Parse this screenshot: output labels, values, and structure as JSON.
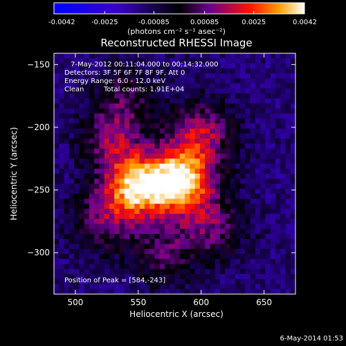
{
  "chart_data": {
    "type": "heatmap",
    "title": "Reconstructed RHESSI Image",
    "xlabel": "Heliocentric X (arcsec)",
    "ylabel": "Heliocentric Y (arcsec)",
    "xlim": [
      483,
      675
    ],
    "ylim": [
      -333,
      -141
    ],
    "x_ticks": [
      500,
      550,
      600,
      650
    ],
    "y_ticks": [
      -150,
      -200,
      -250,
      -300
    ],
    "colorbar": {
      "min": -0.0042,
      "max": 0.0042,
      "ticks": [
        "-0.0042",
        "-0.0025",
        "-0.00085",
        "0.00085",
        "0.0025",
        "0.0042"
      ],
      "unit_label": "(photons cm⁻² s⁻¹ asec⁻²)",
      "colormap_stops": [
        "#0000ff",
        "#3a00c8",
        "#000000",
        "#6a0090",
        "#ff1000",
        "#ffa000",
        "#ffffff"
      ]
    },
    "annotations": {
      "time_range": "7-May-2012 00:11:04.000 to 00:14:32.000",
      "detectors": "Detectors: 3F 5F 6F 7F 8F 9F, Att 0",
      "energy": "Energy Range: 6.0 - 12.0 keV",
      "method": "Clean",
      "counts": "Total counts: 1.91E+04",
      "peak": "Position of Peak = [584,-243]"
    },
    "peak_position": [
      584,
      -243
    ],
    "sources": [
      {
        "x": 584,
        "y": -243,
        "amplitude": 0.0042
      },
      {
        "x": 548,
        "y": -248,
        "amplitude": 0.0038
      },
      {
        "x": 600,
        "y": -205,
        "amplitude": 0.0022
      },
      {
        "x": 530,
        "y": -210,
        "amplitude": 0.0018
      },
      {
        "x": 520,
        "y": -275,
        "amplitude": 0.0015
      },
      {
        "x": 610,
        "y": -280,
        "amplitude": 0.0016
      },
      {
        "x": 570,
        "y": -300,
        "amplitude": 0.0014
      },
      {
        "x": 540,
        "y": -175,
        "amplitude": 0.0012
      }
    ],
    "background": -0.0012
  },
  "footer_date": "6-May-2014 01:53"
}
